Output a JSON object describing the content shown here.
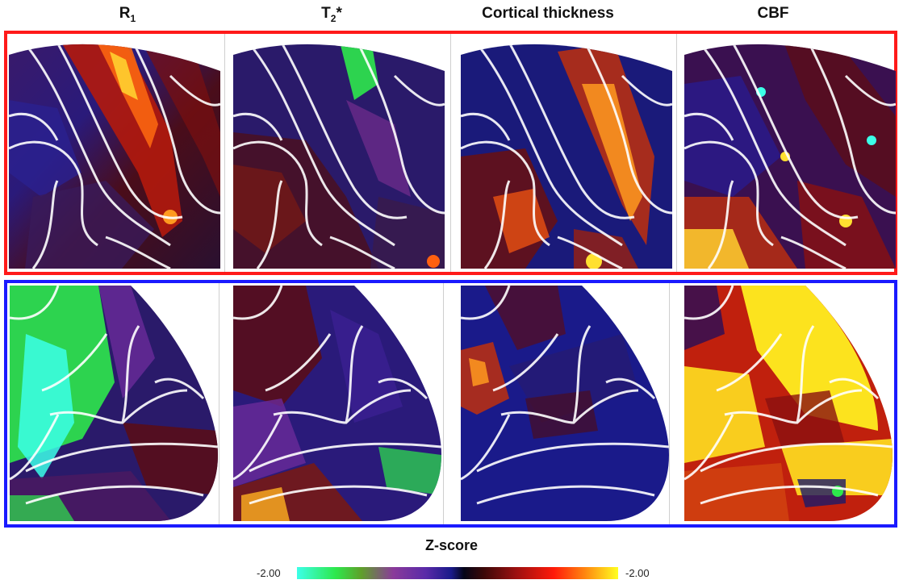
{
  "columns": [
    {
      "title_main": "R",
      "title_sub": "1",
      "title_sup": ""
    },
    {
      "title_main": "T",
      "title_sub": "2",
      "title_sup": "*"
    },
    {
      "title_main": "Cortical thickness",
      "title_sub": "",
      "title_sup": ""
    },
    {
      "title_main": "CBF",
      "title_sub": "",
      "title_sup": ""
    }
  ],
  "legend": {
    "title": "Z-score",
    "min_label": "-2.00",
    "max_label": "-2.00"
  },
  "colors": {
    "top_row_border": "#ff1a1a",
    "bottom_row_border": "#1a1aff",
    "colormap": [
      "#3cffe8",
      "#2de84c",
      "#8a3a9a",
      "#1a1a8a",
      "#050518",
      "#9a1010",
      "#ff1a0a",
      "#ff8a10",
      "#ffff20"
    ]
  }
}
